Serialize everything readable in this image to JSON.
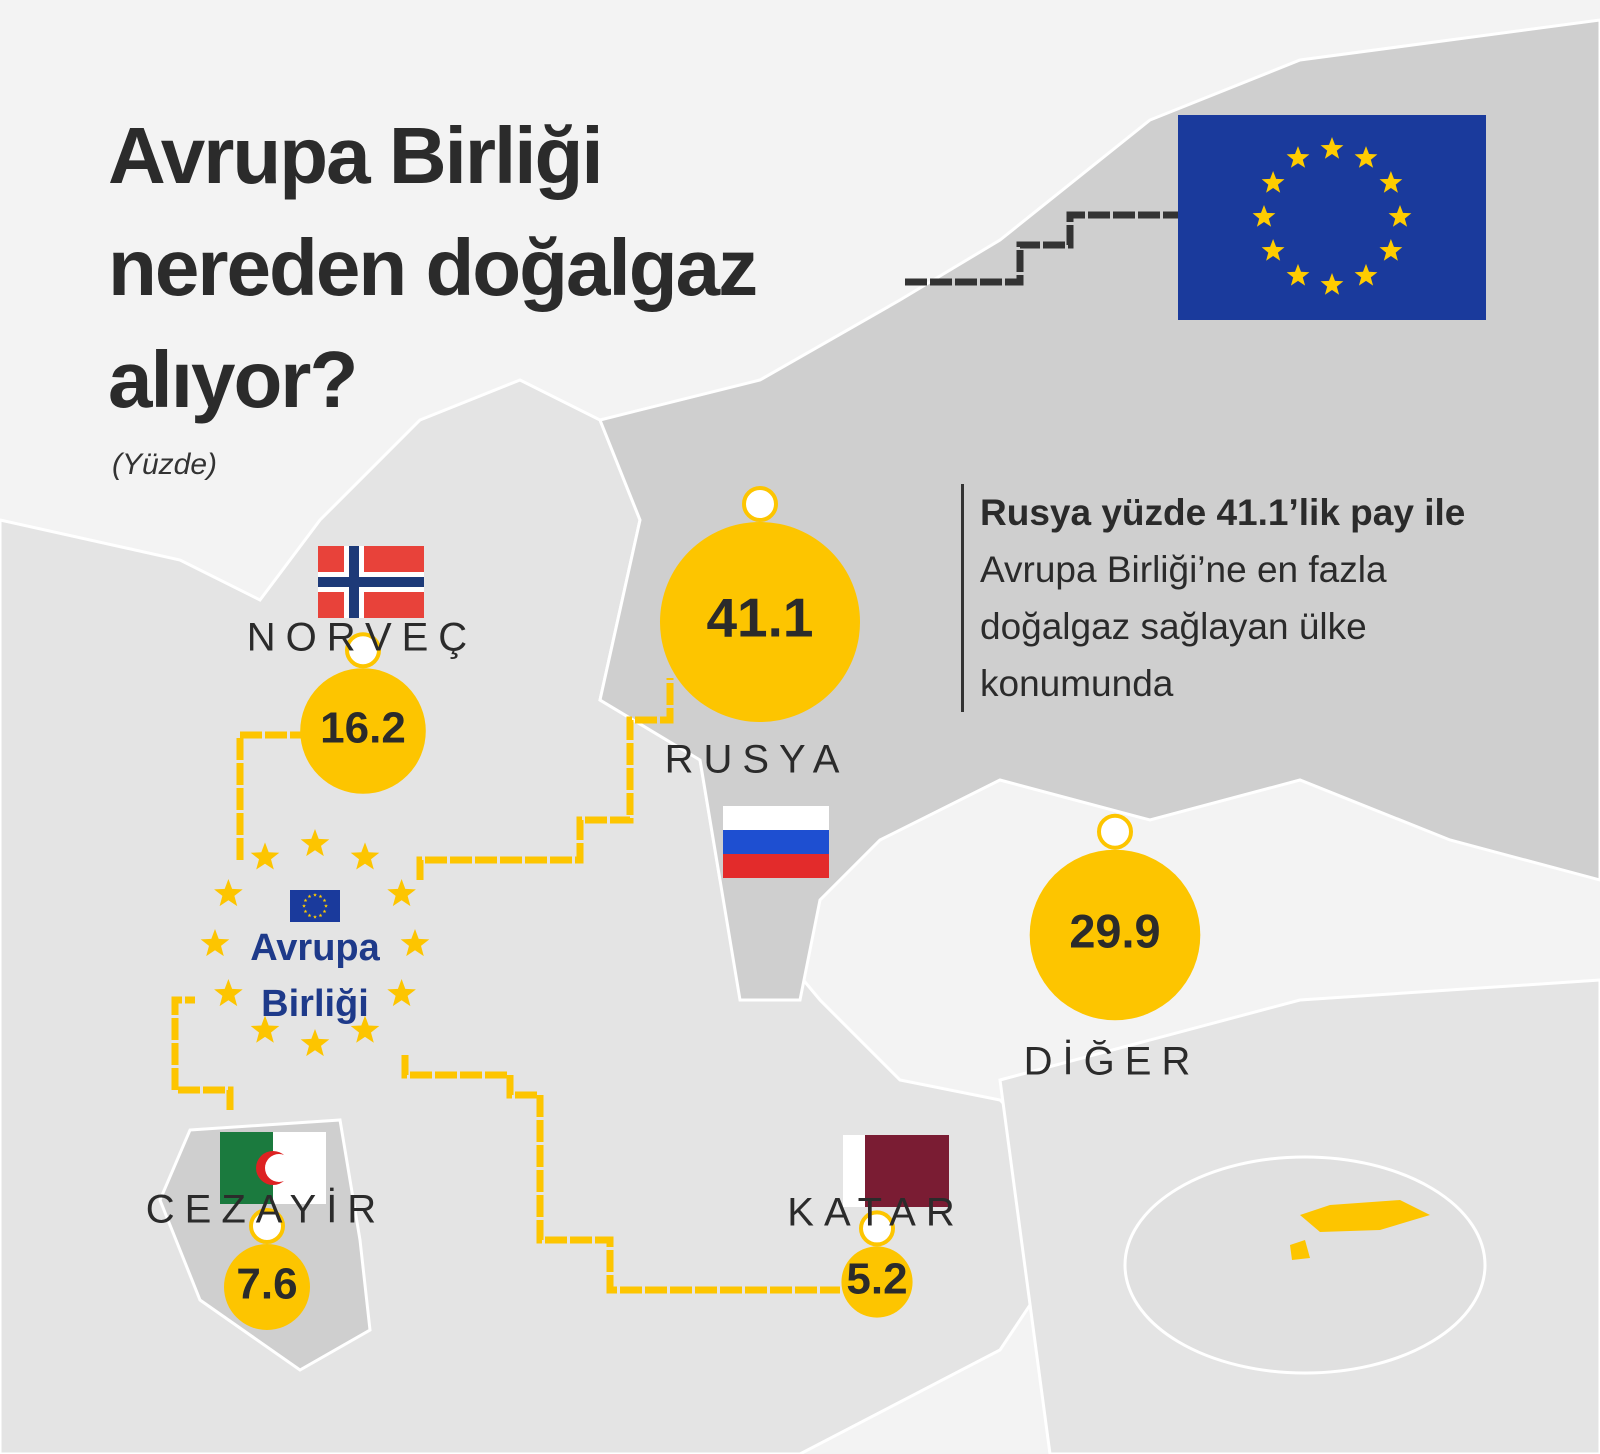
{
  "chart_data": {
    "type": "bubble",
    "title": "Avrupa Birliği nereden doğalgaz alıyor?",
    "subtitle": "(Yüzde)",
    "hub_label": "Avrupa Birliği",
    "annotation": {
      "bold": "Rusya yüzde 41.1’lik pay ile",
      "text": "Avrupa Birliği’ne en fazla doğalgaz sağlayan ülke konumunda"
    },
    "categories": [
      "RUSYA",
      "NORVEÇ",
      "DİĞER",
      "CEZAYİR",
      "KATAR"
    ],
    "values": [
      41.1,
      16.2,
      29.9,
      7.6,
      5.2
    ],
    "color": "#fdc500"
  }
}
